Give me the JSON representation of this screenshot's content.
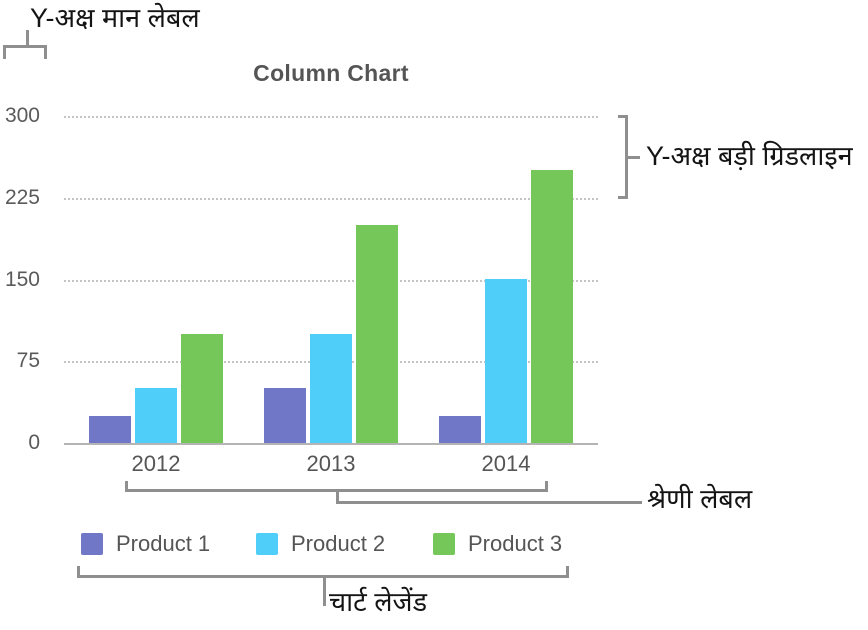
{
  "chart_data": {
    "type": "bar",
    "title": "Column Chart",
    "categories": [
      "2012",
      "2013",
      "2014"
    ],
    "series": [
      {
        "name": "Product 1",
        "color": "#7077C7",
        "values": [
          25,
          50,
          25
        ]
      },
      {
        "name": "Product 2",
        "color": "#4FCEF9",
        "values": [
          50,
          100,
          150
        ]
      },
      {
        "name": "Product 3",
        "color": "#74C758",
        "values": [
          100,
          200,
          250
        ]
      }
    ],
    "y_ticks": [
      300,
      225,
      150,
      75,
      0
    ],
    "ylim": [
      0,
      300
    ],
    "grid": "horizontal dotted major gridlines",
    "legend_position": "bottom"
  },
  "annotations": {
    "y_axis_value_label": "Y-अक्ष मान लेबल",
    "y_axis_major_gridline": "Y-अक्ष बड़ी ग्रिडलाइन",
    "category_label": "श्रेणी लेबल",
    "chart_legend": "चार्ट लेजेंड"
  },
  "colors": {
    "background": "#ffffff",
    "title_text": "#555555",
    "axis_text": "#5a5a5a",
    "gridline": "#c4c4c4",
    "baseline": "#b4b4b4",
    "bracket": "#8f8f8f",
    "annotation_text": "#141414"
  }
}
